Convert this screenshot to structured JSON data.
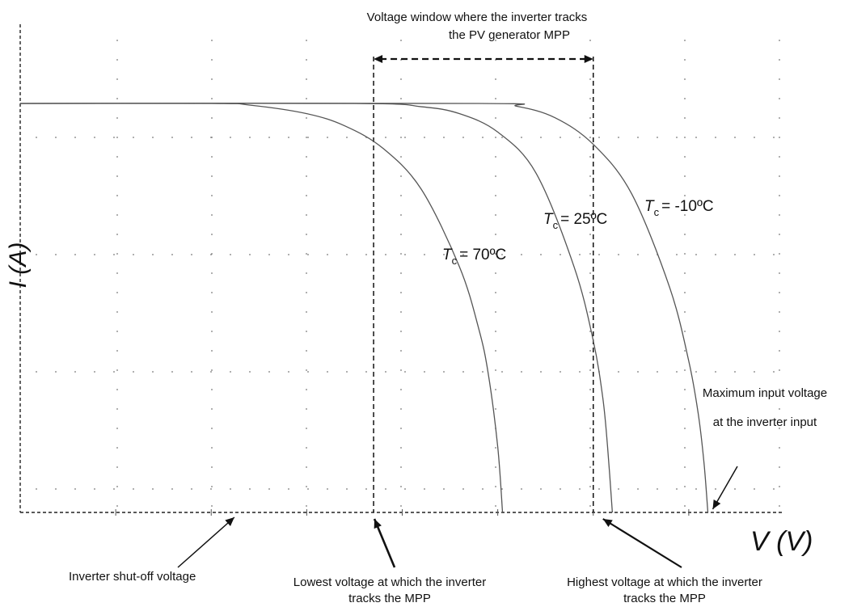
{
  "chart_data": {
    "type": "line",
    "title": "",
    "xlabel": "V (V)",
    "ylabel": "I (A)",
    "xlim": [
      0,
      8
    ],
    "ylim": [
      0,
      1
    ],
    "grid": true,
    "series": [
      {
        "name": "T_c = 70ºC",
        "label_main": "T",
        "label_sub": "c",
        "label_rest": "= 70ºC",
        "x": [
          0,
          2.0,
          2.4,
          3.0,
          3.4,
          3.8,
          4.2,
          4.6,
          4.8,
          4.9,
          5.0,
          5.05
        ],
        "y": [
          1.0,
          1.0,
          0.996,
          0.975,
          0.945,
          0.89,
          0.79,
          0.6,
          0.45,
          0.34,
          0.16,
          0.0
        ]
      },
      {
        "name": "T_c = 25ºC",
        "label_main": "T",
        "label_sub": "c",
        "label_rest": "= 25ºC",
        "x": [
          0,
          3.5,
          4.2,
          4.6,
          5.0,
          5.4,
          5.8,
          6.0,
          6.1,
          6.15,
          6.2
        ],
        "y": [
          1.0,
          1.0,
          0.992,
          0.975,
          0.93,
          0.83,
          0.6,
          0.42,
          0.28,
          0.16,
          0.0
        ]
      },
      {
        "name": "T_c = -10ºC",
        "label_main": "T",
        "label_sub": "c",
        "label_rest": "= -10ºC",
        "x": [
          0,
          4.8,
          5.2,
          5.6,
          6.0,
          6.4,
          6.8,
          7.0,
          7.1,
          7.16,
          7.2
        ],
        "y": [
          1.0,
          1.0,
          0.993,
          0.965,
          0.9,
          0.78,
          0.55,
          0.37,
          0.24,
          0.12,
          0.0
        ]
      }
    ],
    "markers": {
      "shutoff_v": 2.2,
      "lowest_mpp_v": 3.7,
      "highest_mpp_v": 6.0,
      "max_input_v": 7.2
    },
    "annotations": {
      "window_line1": "Voltage window where the inverter tracks",
      "window_line2": "the PV generator MPP",
      "max_line1": "Maximum input voltage",
      "max_line2": "at the inverter input",
      "shutoff": "Inverter shut-off voltage",
      "lowest_line1": "Lowest voltage at which the inverter",
      "lowest_line2": "tracks the MPP",
      "highest_line1": "Highest voltage at which the inverter",
      "highest_line2": "tracks the MPP"
    }
  }
}
